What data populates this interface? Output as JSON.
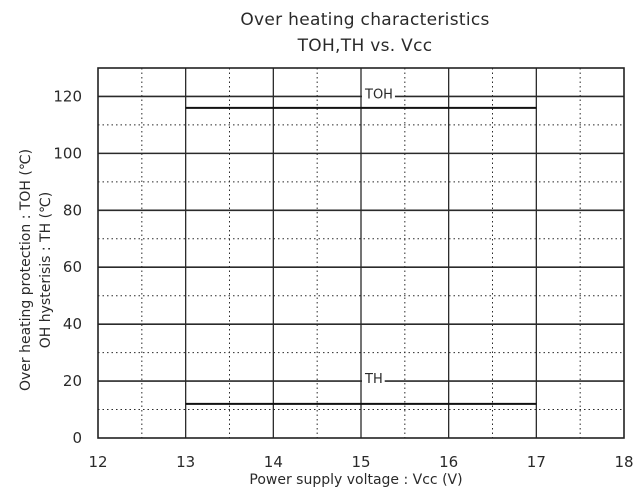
{
  "chart_data": {
    "type": "line",
    "title": "Over heating characteristics",
    "subtitle": "TOH,TH vs. Vcc",
    "xlabel": "Power supply voltage : Vcc (V)",
    "ylabel": "Over heating protection : TOH (℃)",
    "ylabel2": "OH hysterisis : TH (℃)",
    "xlim": [
      12,
      18
    ],
    "ylim": [
      0,
      130
    ],
    "x_ticks": [
      "12",
      "13",
      "14",
      "15",
      "16",
      "17",
      "18"
    ],
    "y_ticks": [
      "0",
      "20",
      "40",
      "60",
      "80",
      "100",
      "120"
    ],
    "grid": true,
    "series": [
      {
        "name": "TOH",
        "x": [
          13,
          17
        ],
        "y": [
          116,
          116
        ]
      },
      {
        "name": "TH",
        "x": [
          13,
          17
        ],
        "y": [
          12,
          12
        ]
      }
    ]
  }
}
